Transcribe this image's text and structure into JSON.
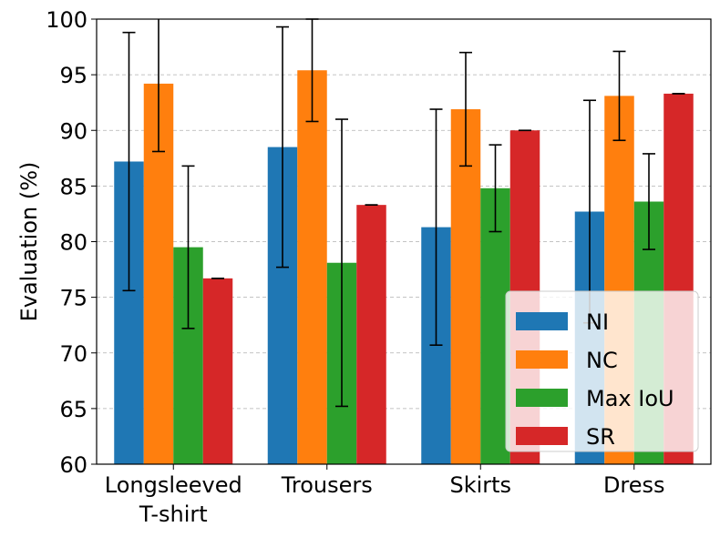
{
  "chart_data": {
    "type": "bar",
    "title": "",
    "xlabel": "",
    "ylabel": "Evaluation (%)",
    "ylim": [
      60,
      100
    ],
    "yticks": [
      60,
      65,
      70,
      75,
      80,
      85,
      90,
      95,
      100
    ],
    "grid": "y-dashed",
    "legend_position": "bottom-right",
    "categories": [
      {
        "label": "Longsleeved",
        "label2": "T-shirt"
      },
      {
        "label": "Trousers",
        "label2": ""
      },
      {
        "label": "Skirts",
        "label2": ""
      },
      {
        "label": "Dress",
        "label2": ""
      }
    ],
    "series": [
      {
        "name": "NI",
        "color": "#1f77b4",
        "values": [
          87.2,
          88.5,
          81.3,
          82.7
        ],
        "errors": [
          11.6,
          10.8,
          10.6,
          10.0
        ]
      },
      {
        "name": "NC",
        "color": "#ff7f0e",
        "values": [
          94.2,
          95.4,
          91.9,
          93.1
        ],
        "errors": [
          6.1,
          4.6,
          5.1,
          4.0
        ]
      },
      {
        "name": "Max IoU",
        "color": "#2ca02c",
        "values": [
          79.5,
          78.1,
          84.8,
          83.6
        ],
        "errors": [
          7.3,
          12.9,
          3.9,
          4.3
        ]
      },
      {
        "name": "SR",
        "color": "#d62728",
        "values": [
          76.7,
          83.3,
          90.0,
          93.3
        ],
        "errors": [
          0,
          0,
          0,
          0
        ]
      }
    ]
  }
}
